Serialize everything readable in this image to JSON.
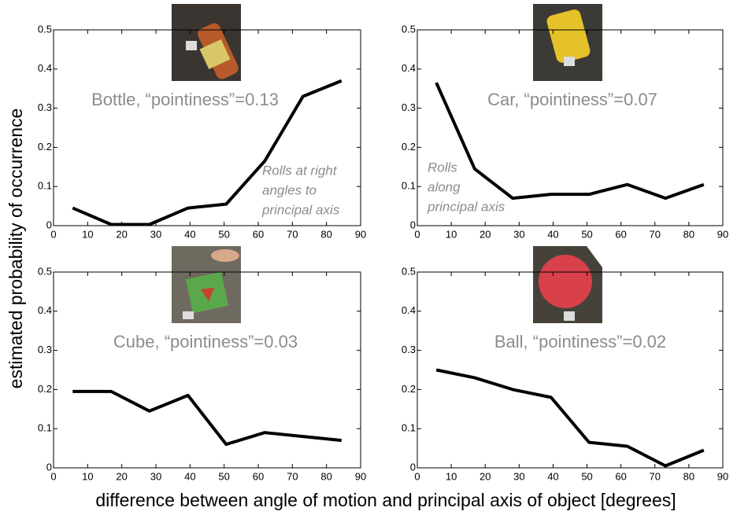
{
  "ylabel": "estimated probability of occurrence",
  "xlabel": "difference between angle of motion and principal axis of object [degrees]",
  "chart_data": [
    {
      "type": "line",
      "title": "Bottle, “pointiness”=0.13",
      "annotation": [
        "Rolls at right",
        "angles to",
        "principal axis"
      ],
      "x": [
        5.6,
        16.9,
        28.1,
        39.4,
        50.6,
        61.9,
        73.1,
        84.4
      ],
      "series": [
        {
          "color": "#000000",
          "values": [
            0.045,
            0.003,
            0.003,
            0.045,
            0.055,
            0.165,
            0.33,
            0.37
          ]
        }
      ],
      "xlim": [
        0,
        90
      ],
      "ylim": [
        0,
        0.5
      ],
      "xticks": [
        0,
        10,
        20,
        30,
        40,
        50,
        60,
        70,
        80,
        90
      ],
      "yticks": [
        0,
        0.1,
        0.2,
        0.3,
        0.4,
        0.5
      ]
    },
    {
      "type": "line",
      "title": "Car, “pointiness”=0.07",
      "annotation": [
        "Rolls",
        "along",
        "principal axis"
      ],
      "x": [
        5.6,
        16.9,
        28.1,
        39.4,
        50.6,
        61.9,
        73.1,
        84.4
      ],
      "series": [
        {
          "color": "#000000",
          "values": [
            0.365,
            0.145,
            0.07,
            0.08,
            0.08,
            0.105,
            0.07,
            0.105
          ]
        }
      ],
      "xlim": [
        0,
        90
      ],
      "ylim": [
        0,
        0.5
      ],
      "xticks": [
        0,
        10,
        20,
        30,
        40,
        50,
        60,
        70,
        80,
        90
      ],
      "yticks": [
        0,
        0.1,
        0.2,
        0.3,
        0.4,
        0.5
      ]
    },
    {
      "type": "line",
      "title": "Cube, “pointiness”=0.03",
      "x": [
        5.6,
        16.9,
        28.1,
        39.4,
        50.6,
        61.9,
        73.1,
        84.4
      ],
      "series": [
        {
          "color": "#000000",
          "values": [
            0.195,
            0.195,
            0.145,
            0.185,
            0.06,
            0.09,
            0.08,
            0.07
          ]
        }
      ],
      "xlim": [
        0,
        90
      ],
      "ylim": [
        0,
        0.5
      ],
      "xticks": [
        0,
        10,
        20,
        30,
        40,
        50,
        60,
        70,
        80,
        90
      ],
      "yticks": [
        0,
        0.1,
        0.2,
        0.3,
        0.4,
        0.5
      ]
    },
    {
      "type": "line",
      "title": "Ball, “pointiness”=0.02",
      "x": [
        5.6,
        16.9,
        28.1,
        39.4,
        50.6,
        61.9,
        73.1,
        84.4
      ],
      "series": [
        {
          "color": "#000000",
          "values": [
            0.25,
            0.23,
            0.2,
            0.18,
            0.065,
            0.055,
            0.005,
            0.045
          ]
        }
      ],
      "xlim": [
        0,
        90
      ],
      "ylim": [
        0,
        0.5
      ],
      "xticks": [
        0,
        10,
        20,
        30,
        40,
        50,
        60,
        70,
        80,
        90
      ],
      "yticks": [
        0,
        0.1,
        0.2,
        0.3,
        0.4,
        0.5
      ]
    }
  ]
}
